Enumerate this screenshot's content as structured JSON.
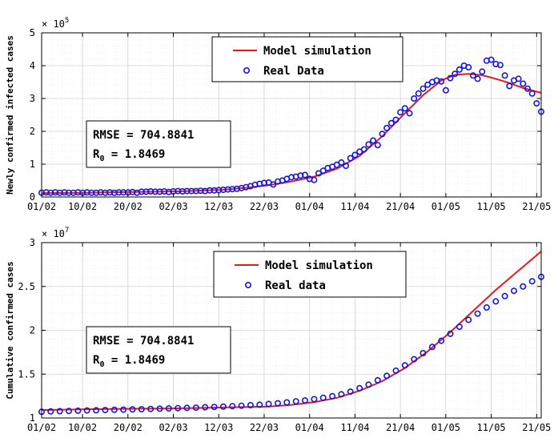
{
  "chart_data": [
    {
      "type": "line",
      "ylabel": "Newly confirmed infected cases",
      "y_exponent": "× 10",
      "y_exponent_power": "5",
      "ylim": [
        0,
        5
      ],
      "yticks": [
        0,
        1,
        2,
        3,
        4,
        5
      ],
      "xlim": [
        0,
        110
      ],
      "xticks": [
        {
          "day": 0,
          "label": "01/02"
        },
        {
          "day": 9,
          "label": "10/02"
        },
        {
          "day": 19,
          "label": "20/02"
        },
        {
          "day": 29,
          "label": "02/03"
        },
        {
          "day": 39,
          "label": "12/03"
        },
        {
          "day": 49,
          "label": "22/03"
        },
        {
          "day": 59,
          "label": "01/04"
        },
        {
          "day": 69,
          "label": "11/04"
        },
        {
          "day": 79,
          "label": "21/04"
        },
        {
          "day": 89,
          "label": "01/05"
        },
        {
          "day": 99,
          "label": "11/05"
        },
        {
          "day": 109,
          "label": "21/05"
        }
      ],
      "grid": true,
      "legend_position": "top-center",
      "series": [
        {
          "name": "Model simulation",
          "style": "line",
          "color": "#e41a1c",
          "points": [
            [
              0,
              0.12
            ],
            [
              10,
              0.13
            ],
            [
              20,
              0.15
            ],
            [
              30,
              0.17
            ],
            [
              40,
              0.22
            ],
            [
              45,
              0.28
            ],
            [
              50,
              0.36
            ],
            [
              55,
              0.47
            ],
            [
              60,
              0.62
            ],
            [
              65,
              0.86
            ],
            [
              70,
              1.25
            ],
            [
              75,
              1.85
            ],
            [
              80,
              2.55
            ],
            [
              84,
              3.1
            ],
            [
              88,
              3.55
            ],
            [
              91,
              3.72
            ],
            [
              94,
              3.75
            ],
            [
              97,
              3.71
            ],
            [
              100,
              3.6
            ],
            [
              103,
              3.47
            ],
            [
              106,
              3.32
            ],
            [
              110,
              3.17
            ]
          ]
        },
        {
          "name": "Real Data",
          "style": "marker",
          "color": "#1515e0",
          "points": [
            [
              0,
              0.13
            ],
            [
              1,
              0.14
            ],
            [
              2,
              0.13
            ],
            [
              3,
              0.14
            ],
            [
              4,
              0.13
            ],
            [
              5,
              0.14
            ],
            [
              6,
              0.13
            ],
            [
              7,
              0.13
            ],
            [
              8,
              0.14
            ],
            [
              9,
              0.13
            ],
            [
              10,
              0.14
            ],
            [
              11,
              0.13
            ],
            [
              12,
              0.13
            ],
            [
              13,
              0.14
            ],
            [
              14,
              0.13
            ],
            [
              15,
              0.14
            ],
            [
              16,
              0.13
            ],
            [
              17,
              0.14
            ],
            [
              18,
              0.14
            ],
            [
              19,
              0.14
            ],
            [
              20,
              0.15
            ],
            [
              21,
              0.13
            ],
            [
              22,
              0.16
            ],
            [
              23,
              0.16
            ],
            [
              24,
              0.17
            ],
            [
              25,
              0.16
            ],
            [
              26,
              0.16
            ],
            [
              27,
              0.17
            ],
            [
              28,
              0.15
            ],
            [
              29,
              0.17
            ],
            [
              30,
              0.18
            ],
            [
              31,
              0.17
            ],
            [
              32,
              0.18
            ],
            [
              33,
              0.18
            ],
            [
              34,
              0.18
            ],
            [
              35,
              0.19
            ],
            [
              36,
              0.18
            ],
            [
              37,
              0.2
            ],
            [
              38,
              0.2
            ],
            [
              39,
              0.21
            ],
            [
              40,
              0.22
            ],
            [
              41,
              0.23
            ],
            [
              42,
              0.24
            ],
            [
              43,
              0.25
            ],
            [
              44,
              0.27
            ],
            [
              45,
              0.3
            ],
            [
              46,
              0.33
            ],
            [
              47,
              0.37
            ],
            [
              48,
              0.4
            ],
            [
              49,
              0.43
            ],
            [
              50,
              0.44
            ],
            [
              51,
              0.38
            ],
            [
              52,
              0.47
            ],
            [
              53,
              0.5
            ],
            [
              54,
              0.55
            ],
            [
              55,
              0.6
            ],
            [
              56,
              0.62
            ],
            [
              57,
              0.65
            ],
            [
              58,
              0.67
            ],
            [
              59,
              0.55
            ],
            [
              60,
              0.52
            ],
            [
              61,
              0.72
            ],
            [
              62,
              0.8
            ],
            [
              63,
              0.88
            ],
            [
              64,
              0.92
            ],
            [
              65,
              0.98
            ],
            [
              66,
              1.05
            ],
            [
              67,
              0.95
            ],
            [
              68,
              1.18
            ],
            [
              69,
              1.28
            ],
            [
              70,
              1.38
            ],
            [
              71,
              1.45
            ],
            [
              72,
              1.6
            ],
            [
              73,
              1.72
            ],
            [
              74,
              1.58
            ],
            [
              75,
              1.92
            ],
            [
              76,
              2.1
            ],
            [
              77,
              2.25
            ],
            [
              78,
              2.35
            ],
            [
              79,
              2.58
            ],
            [
              80,
              2.7
            ],
            [
              81,
              2.55
            ],
            [
              82,
              3.0
            ],
            [
              83,
              3.15
            ],
            [
              84,
              3.3
            ],
            [
              85,
              3.42
            ],
            [
              86,
              3.5
            ],
            [
              87,
              3.55
            ],
            [
              88,
              3.52
            ],
            [
              89,
              3.25
            ],
            [
              90,
              3.62
            ],
            [
              91,
              3.75
            ],
            [
              92,
              3.88
            ],
            [
              93,
              4.0
            ],
            [
              94,
              3.95
            ],
            [
              95,
              3.7
            ],
            [
              96,
              3.6
            ],
            [
              97,
              3.82
            ],
            [
              98,
              4.15
            ],
            [
              99,
              4.18
            ],
            [
              100,
              4.05
            ],
            [
              101,
              4.02
            ],
            [
              102,
              3.7
            ],
            [
              103,
              3.38
            ],
            [
              104,
              3.55
            ],
            [
              105,
              3.6
            ],
            [
              106,
              3.45
            ],
            [
              107,
              3.3
            ],
            [
              108,
              3.15
            ],
            [
              109,
              2.85
            ],
            [
              110,
              2.6
            ]
          ]
        }
      ],
      "annotation": {
        "rmse_label": "RMSE = 704.8841",
        "r0_prefix": "R",
        "r0_sub": "0",
        "r0_suffix": " = 1.8469"
      }
    },
    {
      "type": "line",
      "ylabel": "Cumulative confirmed cases",
      "y_exponent": "× 10",
      "y_exponent_power": "7",
      "ylim": [
        1,
        3
      ],
      "yticks": [
        1,
        1.5,
        2,
        2.5,
        3
      ],
      "ytick_labels": [
        "1",
        "1.5",
        "2",
        "2.5",
        "3"
      ],
      "xlim": [
        0,
        110
      ],
      "grid": true,
      "legend_position": "top-center",
      "series": [
        {
          "name": "Model simulation",
          "style": "line",
          "color": "#e41a1c",
          "points": [
            [
              0,
              1.09
            ],
            [
              10,
              1.1
            ],
            [
              20,
              1.105
            ],
            [
              30,
              1.11
            ],
            [
              40,
              1.12
            ],
            [
              50,
              1.13
            ],
            [
              55,
              1.15
            ],
            [
              60,
              1.18
            ],
            [
              65,
              1.23
            ],
            [
              70,
              1.31
            ],
            [
              75,
              1.42
            ],
            [
              80,
              1.57
            ],
            [
              85,
              1.76
            ],
            [
              90,
              1.98
            ],
            [
              95,
              2.22
            ],
            [
              100,
              2.46
            ],
            [
              105,
              2.68
            ],
            [
              110,
              2.9
            ]
          ]
        },
        {
          "name": "Real data",
          "style": "marker",
          "color": "#1515e0",
          "points": [
            [
              0,
              1.07
            ],
            [
              2,
              1.075
            ],
            [
              4,
              1.078
            ],
            [
              6,
              1.08
            ],
            [
              8,
              1.083
            ],
            [
              10,
              1.086
            ],
            [
              12,
              1.088
            ],
            [
              14,
              1.09
            ],
            [
              16,
              1.093
            ],
            [
              18,
              1.095
            ],
            [
              20,
              1.098
            ],
            [
              22,
              1.1
            ],
            [
              24,
              1.103
            ],
            [
              26,
              1.106
            ],
            [
              28,
              1.109
            ],
            [
              30,
              1.112
            ],
            [
              32,
              1.115
            ],
            [
              34,
              1.118
            ],
            [
              36,
              1.122
            ],
            [
              38,
              1.126
            ],
            [
              40,
              1.13
            ],
            [
              42,
              1.135
            ],
            [
              44,
              1.14
            ],
            [
              46,
              1.146
            ],
            [
              48,
              1.152
            ],
            [
              50,
              1.16
            ],
            [
              52,
              1.168
            ],
            [
              54,
              1.178
            ],
            [
              56,
              1.19
            ],
            [
              58,
              1.2
            ],
            [
              60,
              1.215
            ],
            [
              62,
              1.23
            ],
            [
              64,
              1.248
            ],
            [
              66,
              1.27
            ],
            [
              68,
              1.3
            ],
            [
              70,
              1.34
            ],
            [
              72,
              1.38
            ],
            [
              74,
              1.43
            ],
            [
              76,
              1.48
            ],
            [
              78,
              1.54
            ],
            [
              80,
              1.6
            ],
            [
              82,
              1.67
            ],
            [
              84,
              1.74
            ],
            [
              86,
              1.81
            ],
            [
              88,
              1.88
            ],
            [
              90,
              1.96
            ],
            [
              92,
              2.04
            ],
            [
              94,
              2.12
            ],
            [
              96,
              2.19
            ],
            [
              98,
              2.26
            ],
            [
              100,
              2.33
            ],
            [
              102,
              2.39
            ],
            [
              104,
              2.45
            ],
            [
              106,
              2.5
            ],
            [
              108,
              2.56
            ],
            [
              110,
              2.61
            ]
          ]
        }
      ],
      "annotation": {
        "rmse_label": "RMSE = 704.8841",
        "r0_prefix": "R",
        "r0_sub": "0",
        "r0_suffix": " = 1.8469"
      }
    }
  ]
}
